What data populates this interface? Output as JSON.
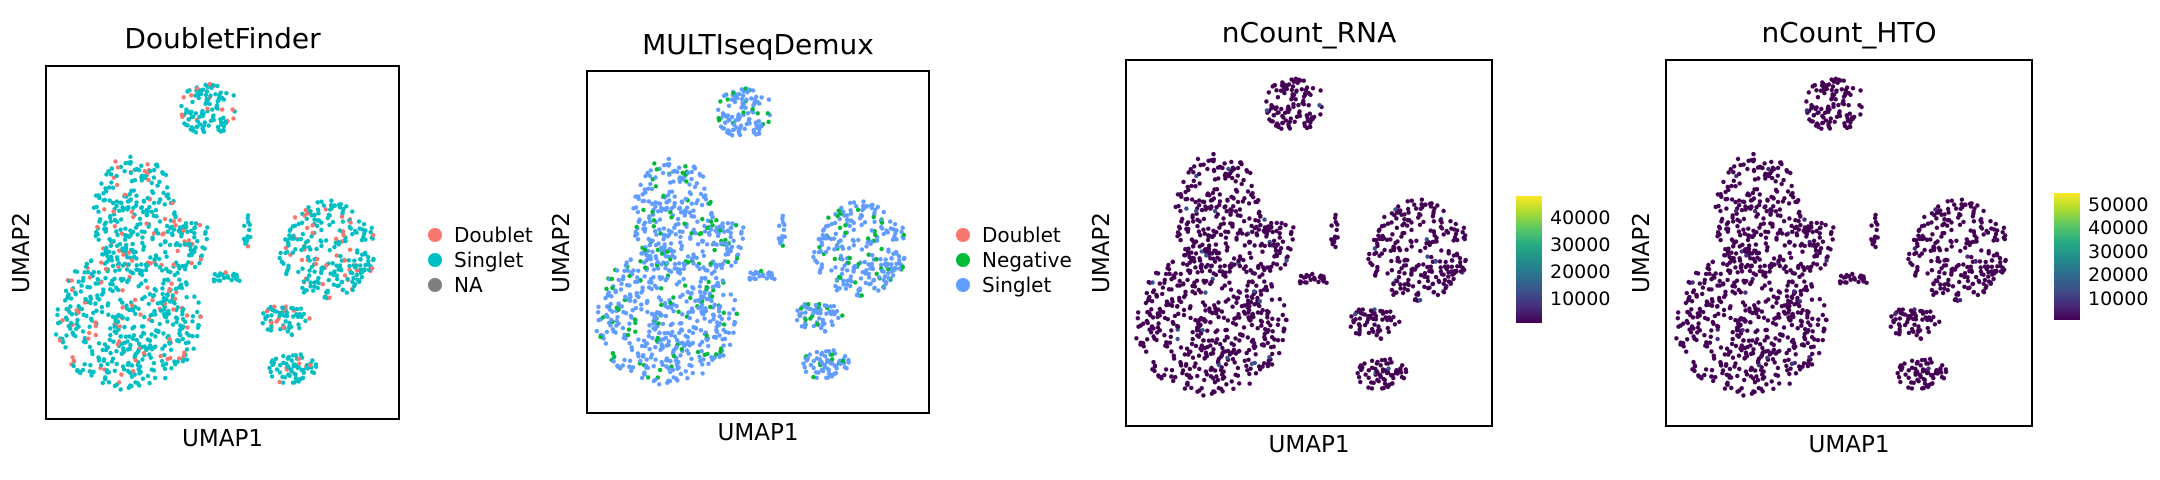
{
  "chart_data": [
    {
      "type": "scatter",
      "title": "DoubletFinder",
      "xlabel": "UMAP1",
      "ylabel": "UMAP2",
      "legend": {
        "placement": "right",
        "entries": [
          {
            "name": "Doublet",
            "color": "#f8766d"
          },
          {
            "name": "Singlet",
            "color": "#00bfc4"
          },
          {
            "name": "NA",
            "color": "#7f7f7f"
          }
        ]
      },
      "base_color": "#00bfc4",
      "speckle_color": "#f8766d",
      "speckle_fraction": 0.15
    },
    {
      "type": "scatter",
      "title": "MULTIseqDemux",
      "xlabel": "UMAP1",
      "ylabel": "UMAP2",
      "legend": {
        "placement": "right",
        "entries": [
          {
            "name": "Doublet",
            "color": "#f8766d"
          },
          {
            "name": "Negative",
            "color": "#00ba38"
          },
          {
            "name": "Singlet",
            "color": "#619cff"
          }
        ]
      },
      "base_color": "#619cff",
      "speckle_color": "#00ba38",
      "speckle_fraction": 0.16
    },
    {
      "type": "scatter",
      "title": "nCount_RNA",
      "xlabel": "UMAP1",
      "ylabel": "UMAP2",
      "colorbar": {
        "colormap": "viridis",
        "ticks": [
          10000,
          20000,
          30000,
          40000
        ],
        "tick_labels": [
          "10000",
          "20000",
          "30000",
          "40000"
        ],
        "range": [
          1000,
          48000
        ]
      },
      "base_color": "#440154",
      "speckle_color": "#3b528b",
      "speckle_fraction": 0.03
    },
    {
      "type": "scatter",
      "title": "nCount_HTO",
      "xlabel": "UMAP1",
      "ylabel": "UMAP2",
      "colorbar": {
        "colormap": "viridis",
        "ticks": [
          10000,
          20000,
          30000,
          40000,
          50000
        ],
        "tick_labels": [
          "10000",
          "20000",
          "30000",
          "40000",
          "50000"
        ],
        "range": [
          1000,
          55000
        ]
      },
      "base_color": "#440154",
      "speckle_color": "#472d7b",
      "speckle_fraction": 0.02
    }
  ]
}
